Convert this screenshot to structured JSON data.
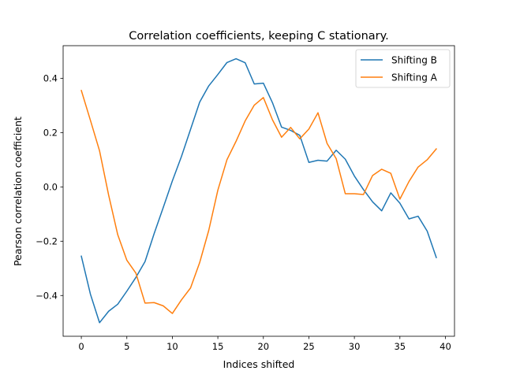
{
  "chart_data": {
    "type": "line",
    "title": "Correlation coefficients, keeping C stationary.",
    "xlabel": "Indices shifted",
    "ylabel": "Pearson correlation coefficient",
    "xlim": [
      -2,
      41
    ],
    "ylim": [
      -0.55,
      0.52
    ],
    "xticks": [
      0,
      5,
      10,
      15,
      20,
      25,
      30,
      35,
      40
    ],
    "yticks": [
      -0.4,
      -0.2,
      0.0,
      0.2,
      0.4
    ],
    "ytick_labels": [
      "−0.4",
      "−0.2",
      "0.0",
      "0.2",
      "0.4"
    ],
    "grid": false,
    "legend_position": "upper right",
    "x": [
      0,
      1,
      2,
      3,
      4,
      5,
      6,
      7,
      8,
      9,
      10,
      11,
      12,
      13,
      14,
      15,
      16,
      17,
      18,
      19,
      20,
      21,
      22,
      23,
      24,
      25,
      26,
      27,
      28,
      29,
      30,
      31,
      32,
      33,
      34,
      35,
      36,
      37,
      38,
      39
    ],
    "series": [
      {
        "name": "Shifting B",
        "color": "#1f77b4",
        "values": [
          -0.255,
          -0.395,
          -0.5,
          -0.458,
          -0.432,
          -0.384,
          -0.333,
          -0.275,
          -0.172,
          -0.076,
          0.022,
          0.112,
          0.212,
          0.312,
          0.372,
          0.414,
          0.458,
          0.472,
          0.457,
          0.379,
          0.382,
          0.31,
          0.22,
          0.208,
          0.19,
          0.09,
          0.098,
          0.095,
          0.135,
          0.102,
          0.04,
          -0.01,
          -0.055,
          -0.088,
          -0.022,
          -0.06,
          -0.118,
          -0.108,
          -0.163,
          -0.26
        ]
      },
      {
        "name": "Shifting A",
        "color": "#ff7f0e",
        "values": [
          0.355,
          0.245,
          0.133,
          -0.03,
          -0.176,
          -0.27,
          -0.318,
          -0.428,
          -0.426,
          -0.438,
          -0.466,
          -0.416,
          -0.372,
          -0.279,
          -0.16,
          -0.012,
          0.1,
          0.168,
          0.243,
          0.301,
          0.329,
          0.247,
          0.183,
          0.219,
          0.177,
          0.213,
          0.273,
          0.16,
          0.104,
          -0.025,
          -0.025,
          -0.028,
          0.042,
          0.065,
          0.05,
          -0.045,
          0.02,
          0.073,
          0.1,
          0.14
        ]
      }
    ]
  }
}
